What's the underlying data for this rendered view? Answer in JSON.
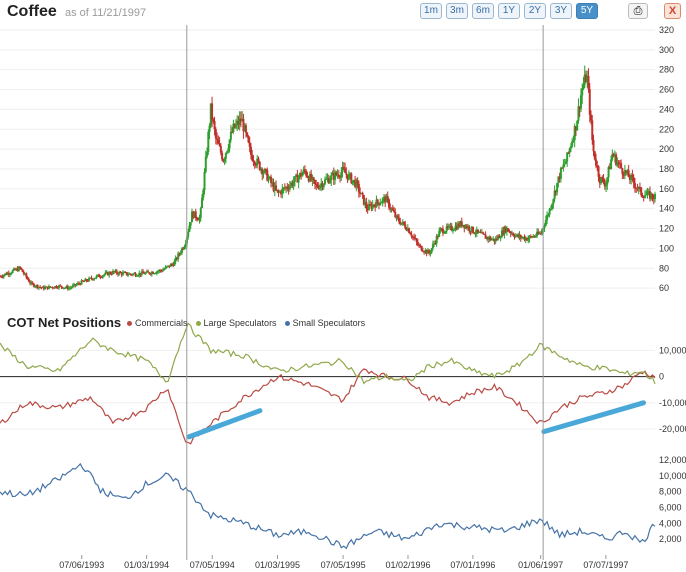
{
  "header": {
    "title": "Coffee",
    "as_of": "as of 11/21/1997",
    "ranges": [
      "1m",
      "3m",
      "6m",
      "1Y",
      "2Y",
      "3Y",
      "5Y"
    ],
    "active_range": "5Y",
    "close_label": "X"
  },
  "cot": {
    "title": "COT Net Positions"
  },
  "colors": {
    "up": "#2e9e2e",
    "down": "#c0302a",
    "commercials": "#b94a44",
    "large_speculators": "#8ea84a",
    "small_speculators": "#4572a7",
    "trend": "#4aa8d8"
  },
  "chart_data": [
    {
      "type": "candlestick",
      "title": "Coffee",
      "y_ticks": [
        60,
        80,
        100,
        120,
        140,
        160,
        180,
        200,
        220,
        240,
        260,
        280,
        300,
        320
      ],
      "ylim": [
        45,
        325
      ],
      "x_ticks": [
        "07/06/1993",
        "01/03/1994",
        "07/05/1994",
        "01/03/1995",
        "07/05/1995",
        "01/02/1996",
        "07/01/1996",
        "01/06/1997",
        "07/07/1997"
      ],
      "xlim": [
        "1992-11-20",
        "1997-11-21"
      ],
      "vertical_lines": [
        "1994-04-25",
        "1997-01-13"
      ],
      "series": [
        {
          "date": "1992-11-20",
          "value": 72
        },
        {
          "date": "1993-01-15",
          "value": 80
        },
        {
          "date": "1993-02-15",
          "value": 64
        },
        {
          "date": "1993-03-20",
          "value": 60
        },
        {
          "date": "1993-05-01",
          "value": 62
        },
        {
          "date": "1993-06-01",
          "value": 60
        },
        {
          "date": "1993-07-06",
          "value": 66
        },
        {
          "date": "1993-08-20",
          "value": 72
        },
        {
          "date": "1993-10-01",
          "value": 76
        },
        {
          "date": "1993-11-15",
          "value": 74
        },
        {
          "date": "1994-01-03",
          "value": 75
        },
        {
          "date": "1994-02-15",
          "value": 78
        },
        {
          "date": "1994-03-20",
          "value": 85
        },
        {
          "date": "1994-04-20",
          "value": 105
        },
        {
          "date": "1994-05-10",
          "value": 135
        },
        {
          "date": "1994-06-01",
          "value": 130
        },
        {
          "date": "1994-06-15",
          "value": 180
        },
        {
          "date": "1994-07-01",
          "value": 240
        },
        {
          "date": "1994-07-15",
          "value": 210
        },
        {
          "date": "1994-08-05",
          "value": 190
        },
        {
          "date": "1994-09-01",
          "value": 220
        },
        {
          "date": "1994-09-25",
          "value": 230
        },
        {
          "date": "1994-10-20",
          "value": 195
        },
        {
          "date": "1994-12-01",
          "value": 175
        },
        {
          "date": "1995-01-03",
          "value": 155
        },
        {
          "date": "1995-02-10",
          "value": 165
        },
        {
          "date": "1995-03-20",
          "value": 178
        },
        {
          "date": "1995-04-20",
          "value": 162
        },
        {
          "date": "1995-05-25",
          "value": 170
        },
        {
          "date": "1995-07-05",
          "value": 178
        },
        {
          "date": "1995-08-10",
          "value": 165
        },
        {
          "date": "1995-09-10",
          "value": 140
        },
        {
          "date": "1995-10-01",
          "value": 145
        },
        {
          "date": "1995-11-01",
          "value": 150
        },
        {
          "date": "1995-12-01",
          "value": 130
        },
        {
          "date": "1996-01-02",
          "value": 120
        },
        {
          "date": "1996-02-01",
          "value": 102
        },
        {
          "date": "1996-03-01",
          "value": 95
        },
        {
          "date": "1996-04-01",
          "value": 118
        },
        {
          "date": "1996-05-01",
          "value": 120
        },
        {
          "date": "1996-06-01",
          "value": 125
        },
        {
          "date": "1996-07-01",
          "value": 118
        },
        {
          "date": "1996-08-01",
          "value": 112
        },
        {
          "date": "1996-09-01",
          "value": 108
        },
        {
          "date": "1996-10-01",
          "value": 120
        },
        {
          "date": "1996-11-01",
          "value": 112
        },
        {
          "date": "1996-12-01",
          "value": 110
        },
        {
          "date": "1997-01-06",
          "value": 115
        },
        {
          "date": "1997-02-01",
          "value": 140
        },
        {
          "date": "1997-03-01",
          "value": 175
        },
        {
          "date": "1997-03-20",
          "value": 190
        },
        {
          "date": "1997-04-15",
          "value": 225
        },
        {
          "date": "1997-05-01",
          "value": 260
        },
        {
          "date": "1997-05-15",
          "value": 275
        },
        {
          "date": "1997-06-01",
          "value": 200
        },
        {
          "date": "1997-06-20",
          "value": 170
        },
        {
          "date": "1997-07-07",
          "value": 165
        },
        {
          "date": "1997-07-25",
          "value": 195
        },
        {
          "date": "1997-08-20",
          "value": 180
        },
        {
          "date": "1997-09-15",
          "value": 170
        },
        {
          "date": "1997-10-15",
          "value": 155
        },
        {
          "date": "1997-11-21",
          "value": 152
        }
      ]
    },
    {
      "type": "line",
      "title": "COT Net Positions",
      "legend": [
        "Commercials",
        "Large Speculators",
        "Small Speculators"
      ],
      "legend_placement": "top-left",
      "y_ticks_upper": [
        10000,
        0,
        -10000,
        -20000
      ],
      "y_ticks_upper_labels": [
        "10,000",
        "0",
        "-10,000",
        "-20,000"
      ],
      "ylim_upper": [
        -28000,
        17000
      ],
      "y_ticks_lower": [
        2000,
        4000,
        6000,
        8000,
        10000,
        12000
      ],
      "y_ticks_lower_labels": [
        "2,000",
        "4,000",
        "6,000",
        "8,000",
        "10,000",
        "12,000"
      ],
      "ylim_lower": [
        0,
        13000
      ],
      "series": [
        {
          "name": "Commercials",
          "points": [
            {
              "date": "1992-11-20",
              "value": -18000
            },
            {
              "date": "1993-02-01",
              "value": -10000
            },
            {
              "date": "1993-05-01",
              "value": -12000
            },
            {
              "date": "1993-08-01",
              "value": -8000
            },
            {
              "date": "1993-10-01",
              "value": -18000
            },
            {
              "date": "1994-01-03",
              "value": -12000
            },
            {
              "date": "1994-03-01",
              "value": -4000
            },
            {
              "date": "1994-04-25",
              "value": -26000
            },
            {
              "date": "1994-07-01",
              "value": -18000
            },
            {
              "date": "1994-10-01",
              "value": -8000
            },
            {
              "date": "1995-01-03",
              "value": 0
            },
            {
              "date": "1995-04-01",
              "value": -3000
            },
            {
              "date": "1995-07-05",
              "value": -9000
            },
            {
              "date": "1995-09-01",
              "value": 3000
            },
            {
              "date": "1995-11-01",
              "value": 0
            },
            {
              "date": "1996-01-02",
              "value": -1000
            },
            {
              "date": "1996-03-01",
              "value": -8000
            },
            {
              "date": "1996-05-01",
              "value": -10000
            },
            {
              "date": "1996-07-01",
              "value": -6000
            },
            {
              "date": "1996-09-01",
              "value": -4000
            },
            {
              "date": "1996-11-01",
              "value": -10000
            },
            {
              "date": "1997-01-06",
              "value": -18000
            },
            {
              "date": "1997-03-01",
              "value": -12000
            },
            {
              "date": "1997-05-01",
              "value": -8000
            },
            {
              "date": "1997-07-07",
              "value": -6000
            },
            {
              "date": "1997-09-01",
              "value": -3000
            },
            {
              "date": "1997-10-15",
              "value": 2000
            },
            {
              "date": "1997-11-21",
              "value": 0
            }
          ]
        },
        {
          "name": "Large Speculators",
          "points": [
            {
              "date": "1992-11-20",
              "value": 12000
            },
            {
              "date": "1993-02-01",
              "value": 4000
            },
            {
              "date": "1993-05-01",
              "value": 2000
            },
            {
              "date": "1993-08-01",
              "value": 14000
            },
            {
              "date": "1993-10-01",
              "value": 10000
            },
            {
              "date": "1994-01-03",
              "value": 6000
            },
            {
              "date": "1994-03-01",
              "value": -2000
            },
            {
              "date": "1994-04-25",
              "value": 20000
            },
            {
              "date": "1994-07-01",
              "value": 10000
            },
            {
              "date": "1994-10-01",
              "value": 8000
            },
            {
              "date": "1995-01-03",
              "value": 2000
            },
            {
              "date": "1995-04-01",
              "value": 4000
            },
            {
              "date": "1995-07-05",
              "value": 6000
            },
            {
              "date": "1995-09-01",
              "value": -2000
            },
            {
              "date": "1995-11-01",
              "value": 0
            },
            {
              "date": "1996-01-02",
              "value": -2000
            },
            {
              "date": "1996-03-01",
              "value": 4000
            },
            {
              "date": "1996-05-01",
              "value": 6000
            },
            {
              "date": "1996-07-01",
              "value": 2000
            },
            {
              "date": "1996-09-01",
              "value": 0
            },
            {
              "date": "1996-11-01",
              "value": 4000
            },
            {
              "date": "1997-01-06",
              "value": 12000
            },
            {
              "date": "1997-03-01",
              "value": 8000
            },
            {
              "date": "1997-05-01",
              "value": 4000
            },
            {
              "date": "1997-07-07",
              "value": 3000
            },
            {
              "date": "1997-09-01",
              "value": 1000
            },
            {
              "date": "1997-10-15",
              "value": 2000
            },
            {
              "date": "1997-11-21",
              "value": -2000
            }
          ]
        },
        {
          "name": "Small Speculators",
          "points": [
            {
              "date": "1992-11-20",
              "value": 8000
            },
            {
              "date": "1993-02-01",
              "value": 7500
            },
            {
              "date": "1993-05-01",
              "value": 9500
            },
            {
              "date": "1993-07-06",
              "value": 11500
            },
            {
              "date": "1993-09-01",
              "value": 8000
            },
            {
              "date": "1993-11-01",
              "value": 7000
            },
            {
              "date": "1994-01-03",
              "value": 9000
            },
            {
              "date": "1994-03-01",
              "value": 10000
            },
            {
              "date": "1994-05-01",
              "value": 8000
            },
            {
              "date": "1994-07-01",
              "value": 5000
            },
            {
              "date": "1994-10-01",
              "value": 4000
            },
            {
              "date": "1995-01-03",
              "value": 2500
            },
            {
              "date": "1995-04-01",
              "value": 3000
            },
            {
              "date": "1995-07-05",
              "value": 1000
            },
            {
              "date": "1995-10-01",
              "value": 3000
            },
            {
              "date": "1996-01-02",
              "value": 2000
            },
            {
              "date": "1996-04-01",
              "value": 4000
            },
            {
              "date": "1996-07-01",
              "value": 3500
            },
            {
              "date": "1996-10-01",
              "value": 3000
            },
            {
              "date": "1997-01-06",
              "value": 4500
            },
            {
              "date": "1997-03-01",
              "value": 2500
            },
            {
              "date": "1997-05-01",
              "value": 3000
            },
            {
              "date": "1997-07-07",
              "value": 2000
            },
            {
              "date": "1997-09-01",
              "value": 3000
            },
            {
              "date": "1997-10-15",
              "value": 1500
            },
            {
              "date": "1997-11-21",
              "value": 4000
            }
          ]
        }
      ],
      "trend_lines": [
        {
          "from": {
            "date": "1994-05-01",
            "value": -23000
          },
          "to": {
            "date": "1994-11-15",
            "value": -13000
          }
        },
        {
          "from": {
            "date": "1997-01-15",
            "value": -21000
          },
          "to": {
            "date": "1997-10-20",
            "value": -10000
          }
        }
      ]
    }
  ]
}
